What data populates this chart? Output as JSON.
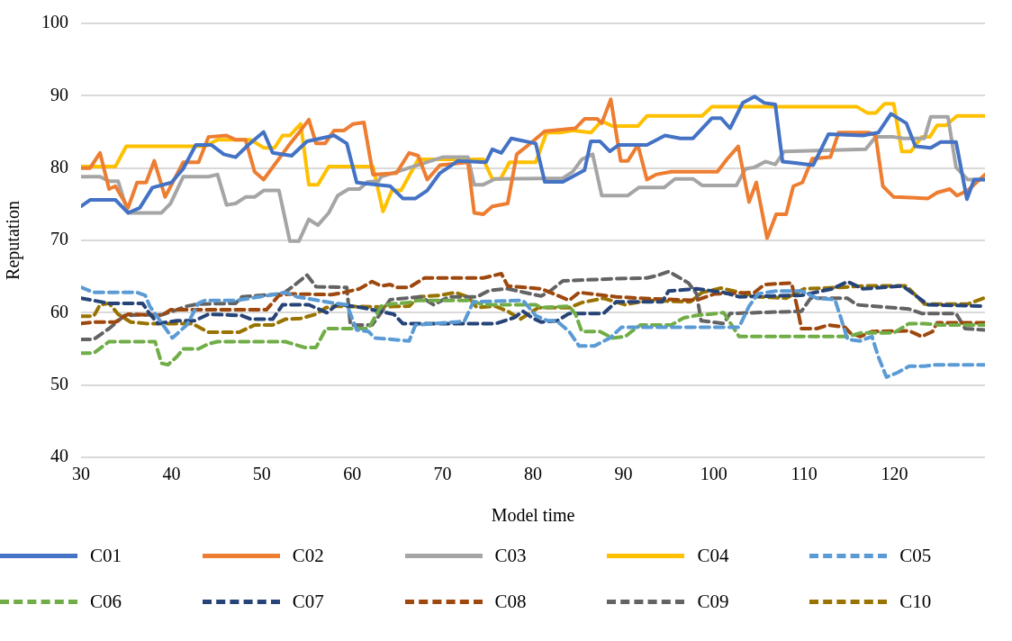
{
  "chart_data": {
    "type": "line",
    "xlabel": "Model time",
    "ylabel": "Reputation",
    "xlim": [
      30,
      130
    ],
    "xticks": [
      30,
      40,
      50,
      60,
      70,
      80,
      90,
      100,
      110,
      120
    ],
    "ylim": [
      40,
      100
    ],
    "yticks": [
      40,
      50,
      60,
      70,
      80,
      90,
      100
    ],
    "grid": "y",
    "legend": "bottom",
    "marker": "none",
    "series": [
      {
        "name": "C01",
        "color": "#4472c4",
        "line_style": "solid",
        "x": [
          30,
          31,
          33.8,
          35.2,
          36.5,
          37.9,
          40,
          41.3,
          42.7,
          44.4,
          45.8,
          47.1,
          48.5,
          50.2,
          51.2,
          53.3,
          55,
          58,
          59.4,
          60.5,
          64.2,
          65.6,
          67,
          68.3,
          69.7,
          71.7,
          74.8,
          75.5,
          76.5,
          77.6,
          80.3,
          81.3,
          83.3,
          85.7,
          86.4,
          87.4,
          88.5,
          89.5,
          92.6,
          94.6,
          96.3,
          97.7,
          99.8,
          100.8,
          101.8,
          103.2,
          104.5,
          105.6,
          106.8,
          107.6,
          109,
          111,
          112.7,
          116.5,
          118.2,
          119.6,
          121.3,
          122.3,
          124,
          125.1,
          126.8,
          128,
          128.8,
          130
        ],
        "values": [
          74.7,
          75.6,
          75.6,
          73.8,
          74.5,
          77.3,
          78,
          79.9,
          83.2,
          83.2,
          81.9,
          81.5,
          83.2,
          85,
          82.1,
          81.7,
          83.7,
          84.5,
          83.4,
          78,
          77.5,
          75.8,
          75.8,
          76.9,
          79.3,
          81,
          80.8,
          82.6,
          82.1,
          84.1,
          83.4,
          78.1,
          78.1,
          79.7,
          83.7,
          83.7,
          82.3,
          83.2,
          83.2,
          84.5,
          84.1,
          84.1,
          86.9,
          86.9,
          85.5,
          89,
          89.9,
          89,
          88.8,
          80.9,
          80.7,
          80.4,
          84.7,
          84.5,
          84.9,
          87.5,
          86.2,
          83,
          82.8,
          83.6,
          83.6,
          75.7,
          78.4,
          78.4
        ]
      },
      {
        "name": "C02",
        "color": "#ed7d31",
        "line_style": "solid",
        "x": [
          30,
          31,
          32.1,
          33.1,
          33.8,
          35.2,
          36.2,
          37.2,
          38.1,
          39.3,
          41.3,
          43,
          44.1,
          46.1,
          47.1,
          48.2,
          49.2,
          50.2,
          52.9,
          54.3,
          55.2,
          56,
          57,
          58,
          59.1,
          60.1,
          61.3,
          62.3,
          64.9,
          66.3,
          67.3,
          68.3,
          69.7,
          72.8,
          73.5,
          74.5,
          75.5,
          77.2,
          78.2,
          79.9,
          81.3,
          84.7,
          85.7,
          87.1,
          87.6,
          88.6,
          89.7,
          90.5,
          91.6,
          92.6,
          93.6,
          95.3,
          100.4,
          101.5,
          102.7,
          103.9,
          104.7,
          105.9,
          106.9,
          108,
          108.8,
          109.8,
          110.9,
          112.9,
          113.8,
          117.2,
          117.9,
          118.7,
          119.9,
          123.7,
          124.7,
          126.1,
          126.9,
          128.1,
          130
        ],
        "values": [
          80,
          80,
          82.1,
          77.1,
          77.5,
          74.5,
          78,
          78,
          81,
          76,
          80.8,
          80.8,
          84.3,
          84.5,
          83.9,
          83.9,
          79.5,
          78.4,
          83,
          85.2,
          86.7,
          83.4,
          83.4,
          85.2,
          85.2,
          86.1,
          86.3,
          79.1,
          79.3,
          82.1,
          81.7,
          78.4,
          80.4,
          80.8,
          73.8,
          73.6,
          74.7,
          75.1,
          81.9,
          83.6,
          85.1,
          85.5,
          86.8,
          86.8,
          86.2,
          89.5,
          81,
          81,
          83.2,
          78.4,
          79.1,
          79.5,
          79.5,
          81.3,
          83,
          75.3,
          78,
          70.3,
          73.6,
          73.6,
          77.5,
          78,
          81.3,
          81.5,
          84.9,
          84.9,
          84.5,
          77.5,
          76,
          75.8,
          76.6,
          77.1,
          76.2,
          76.9,
          79.1
        ]
      },
      {
        "name": "C03",
        "color": "#a5a5a5",
        "line_style": "solid",
        "x": [
          30,
          32.1,
          33.1,
          34.1,
          35.2,
          38.9,
          39.9,
          41.3,
          44.1,
          45.1,
          46.1,
          47.1,
          48.2,
          49.2,
          50.2,
          51.9,
          53.1,
          54.1,
          55.2,
          56.2,
          57.4,
          58.4,
          59.6,
          60.8,
          61.7,
          62.9,
          63.2,
          70,
          72.8,
          73.5,
          74.5,
          75.8,
          83.3,
          84.4,
          85.4,
          86.6,
          87.6,
          90.5,
          91.7,
          94.5,
          95.7,
          97.7,
          98.7,
          102.5,
          103.5,
          104.5,
          105.7,
          106.8,
          107.8,
          116.8,
          117.9,
          119.9,
          121,
          123.3,
          124,
          125.9,
          126.8,
          128.1,
          130
        ],
        "values": [
          78.8,
          78.8,
          78.2,
          78.2,
          73.8,
          73.8,
          75.1,
          78.8,
          78.8,
          79.1,
          74.9,
          75.1,
          76,
          76,
          76.9,
          76.9,
          69.9,
          69.9,
          72.9,
          72.1,
          73.8,
          76.2,
          77.1,
          77.1,
          78.1,
          78.2,
          78.8,
          81.5,
          81.5,
          77.7,
          77.7,
          78.5,
          78.6,
          79.5,
          81.2,
          81.9,
          76.2,
          76.2,
          77.3,
          77.3,
          78.5,
          78.5,
          77.6,
          77.6,
          79.9,
          80.1,
          80.9,
          80.5,
          82.3,
          82.6,
          84.3,
          84.3,
          84.1,
          84.1,
          87.1,
          87.1,
          80.1,
          78.4,
          78.4
        ]
      },
      {
        "name": "C04",
        "color": "#ffc000",
        "line_style": "solid",
        "x": [
          30,
          33.8,
          35,
          43.7,
          45.1,
          48.8,
          50.2,
          51.4,
          52.3,
          53.1,
          54.3,
          55.2,
          56.2,
          57.4,
          62.3,
          63.4,
          64.4,
          65.4,
          67.3,
          74.5,
          75.5,
          76.4,
          77.4,
          80.3,
          81.5,
          83,
          84.5,
          86.4,
          87.6,
          88.8,
          91.6,
          92.6,
          98.7,
          99.8,
          115.8,
          117,
          117.9,
          118.9,
          119.9,
          120.8,
          121.8,
          123,
          123.9,
          124.7,
          125.7,
          126.9,
          130
        ],
        "values": [
          80.2,
          80.2,
          83,
          83,
          83.9,
          83.9,
          82.8,
          82.8,
          84.5,
          84.5,
          86.1,
          77.7,
          77.7,
          80.2,
          80.2,
          74,
          76.9,
          76.9,
          81.2,
          81.2,
          78.5,
          78.5,
          80.8,
          80.8,
          84.9,
          84.9,
          85.2,
          84.9,
          86.5,
          85.8,
          85.8,
          87.2,
          87.2,
          88.5,
          88.5,
          87.6,
          87.6,
          88.9,
          88.9,
          82.3,
          82.3,
          84.3,
          84.3,
          85.9,
          85.9,
          87.2,
          87.2
        ]
      },
      {
        "name": "C05",
        "color": "#5b9bd5",
        "line_style": "dashed",
        "x": [
          30,
          31.4,
          36.2,
          37.1,
          37.6,
          40.1,
          41.7,
          43,
          43.7,
          47.1,
          48.8,
          52.6,
          53.9,
          58,
          59.4,
          60.5,
          61.8,
          62.5,
          66.3,
          67,
          72.4,
          73.4,
          78.9,
          80.3,
          81.6,
          82.6,
          84,
          85.1,
          86.8,
          88.5,
          89.8,
          102.8,
          103.9,
          104.9,
          106.9,
          109.7,
          111.4,
          113.4,
          114.1,
          114.8,
          116.2,
          117.5,
          118.2,
          119.1,
          120.3,
          121.6,
          123.3,
          124.4,
          130
        ],
        "values": [
          63.5,
          62.8,
          62.8,
          62.4,
          60.9,
          56.5,
          58.3,
          61.3,
          61.7,
          61.7,
          62,
          62.8,
          62.2,
          61.3,
          61.1,
          57.6,
          57.4,
          56.5,
          56.1,
          58.3,
          58.8,
          61.5,
          61.7,
          59.6,
          58.9,
          58.9,
          57.4,
          55.4,
          55.4,
          56.5,
          58,
          58,
          60.9,
          62.6,
          63,
          63,
          62,
          61.8,
          59.1,
          56.3,
          56.1,
          56.7,
          53.9,
          51.1,
          51.7,
          52.6,
          52.6,
          52.8,
          52.8
        ]
      },
      {
        "name": "C06",
        "color": "#70ad47",
        "line_style": "dashed",
        "x": [
          30,
          31.4,
          33.1,
          38.2,
          38.9,
          39.6,
          40.6,
          41.3,
          43,
          44.1,
          45.1,
          52.6,
          54.7,
          56,
          57.1,
          61.8,
          63.2,
          64.2,
          66.3,
          67.3,
          73.1,
          74.5,
          80.3,
          80.9,
          84,
          84.7,
          85.4,
          87.4,
          88.8,
          90.2,
          90.9,
          91.9,
          95.3,
          96.7,
          98,
          101.1,
          102.8,
          114.8,
          116.2,
          119.9,
          121.6,
          123.3,
          125.1,
          130
        ],
        "values": [
          54.4,
          54.4,
          56,
          56,
          53,
          52.8,
          53.9,
          55,
          55,
          55.7,
          56,
          56,
          55.2,
          55.2,
          57.8,
          57.8,
          60.9,
          61.2,
          61.4,
          61.7,
          61.7,
          61.1,
          61.1,
          60.7,
          60.9,
          59.8,
          57.4,
          57.4,
          56.5,
          56.7,
          57.4,
          58.3,
          58.3,
          59.3,
          59.6,
          60,
          56.7,
          56.7,
          57.2,
          57.2,
          58.5,
          58.5,
          58.3,
          58.3
        ]
      },
      {
        "name": "C07",
        "color": "#264478",
        "line_style": "dashed",
        "x": [
          30,
          33.1,
          36.8,
          37.5,
          38.5,
          40.6,
          42.6,
          44.1,
          47.8,
          48.8,
          51.2,
          52.3,
          55.2,
          57.2,
          58.4,
          61.1,
          64.6,
          65.6,
          75.9,
          77.9,
          78.9,
          79.9,
          80.9,
          82.7,
          84,
          87.8,
          89.2,
          94.3,
          95,
          98.1,
          101.1,
          102.8,
          109.7,
          113.1,
          114.8,
          116.5,
          120.9,
          123.7,
          130
        ],
        "values": [
          62,
          61.3,
          61.3,
          60,
          58.5,
          58.9,
          58.9,
          59.8,
          59.6,
          59.1,
          59.1,
          61.1,
          61.1,
          60,
          61.2,
          60.7,
          59.8,
          58.5,
          58.5,
          59.3,
          60.2,
          59.3,
          58.7,
          58.9,
          59.9,
          59.9,
          61.5,
          61.5,
          63,
          63.3,
          62.8,
          62.2,
          62.4,
          63.3,
          64.3,
          63.3,
          63.7,
          61.1,
          60.9
        ]
      },
      {
        "name": "C08",
        "color": "#9e480e",
        "line_style": "dashed",
        "x": [
          30,
          31.4,
          33.8,
          35.2,
          38.9,
          39.9,
          50.5,
          51.9,
          53.3,
          57.7,
          59.1,
          60.8,
          62.2,
          63.2,
          64.2,
          64.9,
          66.3,
          68,
          74.5,
          76.5,
          77.2,
          80.9,
          82.3,
          84,
          85.1,
          89.2,
          91.9,
          98,
          100.1,
          104.5,
          105.6,
          108.6,
          109.2,
          109.7,
          111.4,
          112.7,
          114.5,
          115.1,
          116.2,
          117.5,
          121.6,
          123,
          124.2,
          124.7,
          130
        ],
        "values": [
          58.5,
          58.7,
          58.7,
          59.8,
          59.6,
          60.4,
          60.4,
          62.4,
          62.6,
          62.5,
          62.8,
          63.3,
          64.3,
          63.7,
          63.9,
          63.5,
          63.5,
          64.8,
          64.8,
          65.4,
          63.7,
          63.3,
          62.6,
          61.7,
          62.8,
          62.2,
          62,
          61.7,
          62.6,
          62.8,
          63.9,
          64.1,
          60.9,
          57.8,
          57.8,
          58.3,
          58,
          57.2,
          56.7,
          57.4,
          57.5,
          56.7,
          57.4,
          58.6,
          58.6
        ]
      },
      {
        "name": "C09",
        "color": "#636363",
        "line_style": "dashed",
        "x": [
          30,
          31.4,
          33.1,
          34.8,
          36.2,
          38.9,
          39.9,
          41.7,
          43,
          47.1,
          47.8,
          52.3,
          53.3,
          55,
          56,
          59.4,
          59.8,
          62.2,
          63.2,
          64.2,
          67.6,
          69,
          70.7,
          73.8,
          75.2,
          77.2,
          80.9,
          81.9,
          83.3,
          89.2,
          92.6,
          93.9,
          95,
          96,
          97.2,
          98.1,
          98.6,
          101.1,
          101.8,
          109.7,
          110.7,
          114.8,
          115.8,
          121.6,
          123,
          126.8,
          127.8,
          130
        ],
        "values": [
          56.3,
          56.3,
          57.8,
          59.6,
          59.7,
          59.7,
          60.1,
          60.9,
          61.2,
          61.3,
          62.2,
          62.6,
          63.5,
          65.2,
          63.6,
          63.5,
          58.3,
          58.3,
          60,
          61.8,
          62.2,
          61.1,
          62.2,
          62.2,
          63.1,
          63.3,
          62.3,
          63,
          64.4,
          64.7,
          64.8,
          65.2,
          65.7,
          65,
          64.1,
          62.6,
          58.9,
          58.5,
          59.9,
          60.2,
          62,
          62,
          61.1,
          60.5,
          59.9,
          59.9,
          57.8,
          57.6
        ]
      },
      {
        "name": "C10",
        "color": "#997300",
        "line_style": "dashed",
        "x": [
          30,
          31.4,
          32.1,
          33.1,
          34.1,
          35.5,
          37.2,
          42.3,
          44.1,
          47.5,
          49.2,
          51.2,
          52.6,
          54.3,
          56,
          57.1,
          58,
          62.9,
          66.3,
          67.3,
          69.7,
          71.4,
          72.8,
          73.8,
          75.8,
          77.2,
          78.6,
          80.6,
          84,
          85.4,
          87.8,
          90.2,
          92.6,
          97.4,
          98.7,
          100.8,
          104.9,
          108,
          110,
          114.1,
          116.5,
          121.3,
          123.3,
          128.1,
          129.8
        ],
        "values": [
          59.5,
          59.5,
          61.1,
          61.3,
          59.8,
          58.7,
          58.5,
          58.5,
          57.3,
          57.3,
          58.3,
          58.3,
          59.1,
          59.2,
          59.8,
          60.7,
          60.9,
          60.8,
          60.9,
          62.2,
          62.4,
          62.8,
          62.2,
          60.7,
          60.9,
          60.2,
          59.1,
          60.7,
          60.7,
          61.4,
          62,
          61.1,
          61.7,
          61.5,
          62.8,
          63.4,
          62.2,
          62,
          63.3,
          63.5,
          63.7,
          63.7,
          61.2,
          61.2,
          62
        ]
      }
    ]
  }
}
